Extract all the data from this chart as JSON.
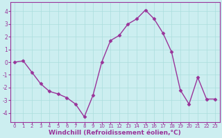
{
  "x": [
    0,
    1,
    2,
    3,
    4,
    5,
    6,
    7,
    8,
    9,
    10,
    11,
    12,
    13,
    14,
    15,
    16,
    17,
    18,
    19,
    20,
    21,
    22,
    23
  ],
  "y": [
    0.0,
    0.1,
    -0.8,
    -1.7,
    -2.3,
    -2.5,
    -2.8,
    -3.3,
    -4.3,
    -2.6,
    0.0,
    1.7,
    2.1,
    3.0,
    3.4,
    4.1,
    3.4,
    2.3,
    0.8,
    -2.2,
    -3.3,
    -1.2,
    -2.9,
    -2.9
  ],
  "line_color": "#993399",
  "marker": "D",
  "marker_size": 2.5,
  "linewidth": 1.0,
  "xlabel": "Windchill (Refroidissement éolien,°C)",
  "xlabel_fontsize": 6.5,
  "ytick_labels": [
    "4",
    "3",
    "2",
    "1",
    "0",
    "-1",
    "-2",
    "-3",
    "-4"
  ],
  "ytick_values": [
    4,
    3,
    2,
    1,
    0,
    -1,
    -2,
    -3,
    -4
  ],
  "xlim": [
    -0.5,
    23.5
  ],
  "ylim": [
    -4.7,
    4.7
  ],
  "bg_color": "#cceef0",
  "grid_color": "#aadddd",
  "spine_color": "#993399",
  "tick_color": "#993399"
}
